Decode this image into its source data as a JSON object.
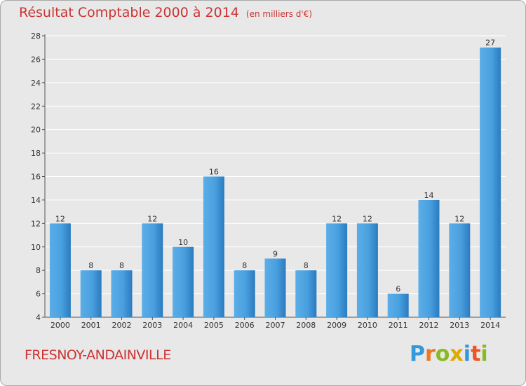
{
  "chart_data": {
    "type": "bar",
    "title": "Résultat Comptable 2000 à 2014",
    "subtitle": "(en milliers d'€)",
    "categories": [
      "2000",
      "2001",
      "2002",
      "2003",
      "2004",
      "2005",
      "2006",
      "2007",
      "2008",
      "2009",
      "2010",
      "2011",
      "2012",
      "2013",
      "2014"
    ],
    "values": [
      12,
      8,
      8,
      12,
      10,
      16,
      8,
      9,
      8,
      12,
      12,
      6,
      14,
      12,
      27
    ],
    "ylim": [
      4,
      28
    ],
    "yticks": [
      4,
      6,
      8,
      10,
      12,
      14,
      16,
      18,
      20,
      22,
      24,
      26,
      28
    ],
    "grid": true,
    "bar_color_top": "#5aaee8",
    "bar_color_bottom": "#2a7bbf",
    "grid_color": "#ffffff"
  },
  "footer": {
    "commune": "FRESNOY-ANDAINVILLE",
    "brand_letters": [
      "P",
      "r",
      "o",
      "x",
      "i",
      "t",
      "i"
    ],
    "brand_colors": [
      "#3399dd",
      "#ee7722",
      "#88bb22",
      "#ddaa00",
      "#3399dd",
      "#ee5522",
      "#88bb22"
    ]
  }
}
